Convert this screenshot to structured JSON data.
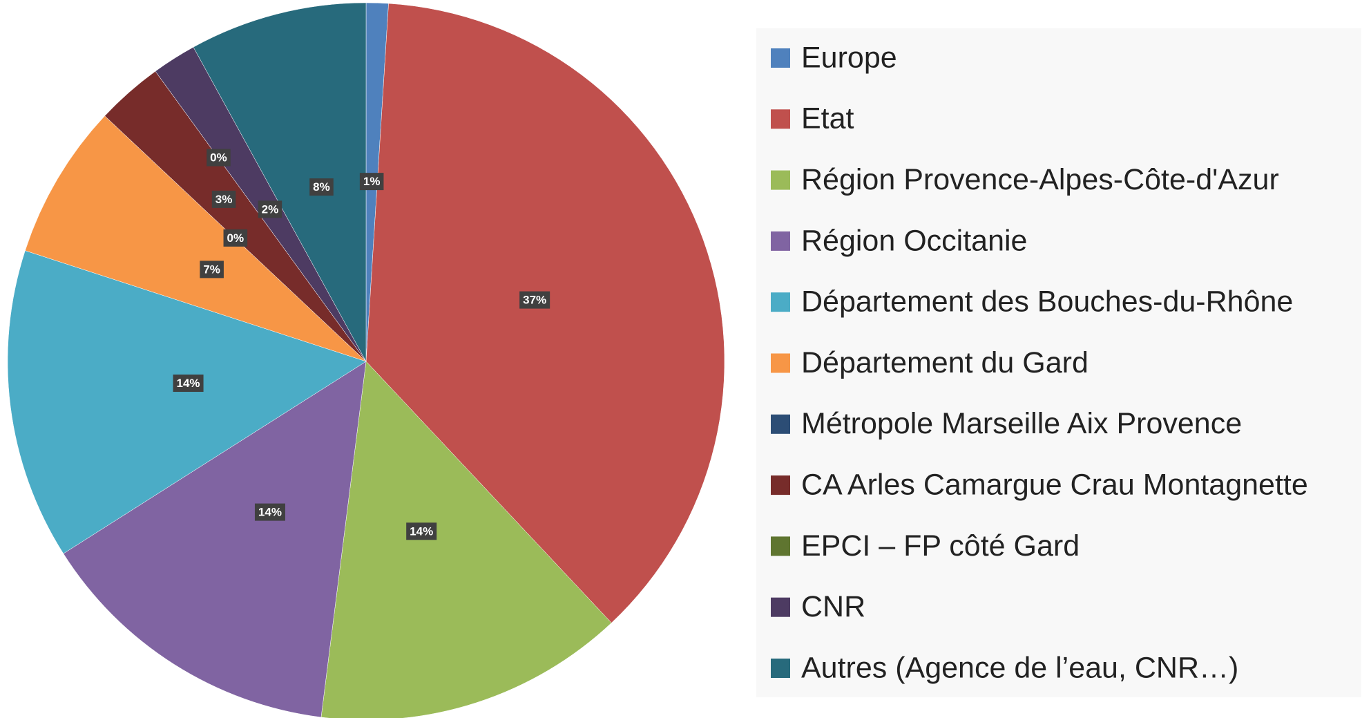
{
  "chart_data": {
    "type": "pie",
    "categories": [
      "Europe",
      "Etat",
      "Région Provence-Alpes-Côte-d'Azur",
      "Région Occitanie",
      "Département des Bouches-du-Rhône",
      "Département du Gard",
      "Métropole Marseille Aix Provence",
      "CA Arles Camargue Crau Montagnette",
      "EPCI – FP côté Gard",
      "CNR",
      "Autres (Agence de l’eau, CNR…)"
    ],
    "values": [
      1,
      37,
      14,
      14,
      14,
      7,
      0,
      3,
      0,
      2,
      8
    ],
    "value_labels": [
      "1%",
      "37%",
      "14%",
      "14%",
      "14%",
      "7%",
      "0%",
      "3%",
      "0%",
      "2%",
      "8%"
    ],
    "colors": [
      "#4f81bd",
      "#c0504d",
      "#9bbb59",
      "#8064a2",
      "#4bacc6",
      "#f79646",
      "#2c4d75",
      "#772c2a",
      "#5f7530",
      "#4d3b62",
      "#276a7c"
    ],
    "legend": "right"
  }
}
